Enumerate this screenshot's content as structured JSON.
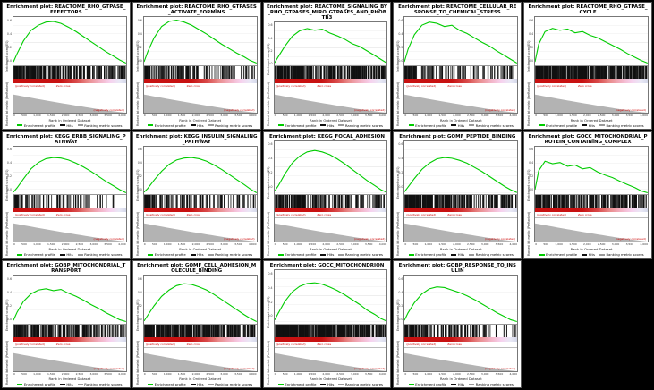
{
  "figure": {
    "background": "#000000"
  },
  "grid": {
    "cols": 5,
    "rows": 3,
    "empty_last_cell": true
  },
  "panel_common": {
    "title_prefix": "Enrichment plot:",
    "annotations": {
      "positive": "(positively correlated)",
      "zero_cross": "Zero cross",
      "negative": "(negatively correlated)"
    }
  },
  "axes": {
    "xlabel": "Rank in Ordered Dataset",
    "ylabel_top": "Enrichment score (ES)",
    "ylabel_bottom": "Ranked list metric (PreRanked)",
    "x_ticks": [
      "0",
      "500",
      "1,000",
      "1,500",
      "2,000",
      "2,500",
      "3,000",
      "3,500",
      "4,000"
    ],
    "es_ticks": [
      "0.6",
      "0.4",
      "0.2",
      "0.0"
    ],
    "rank_points": [
      0,
      150,
      400,
      700,
      1000,
      1300,
      1600,
      1900,
      2200,
      2500,
      2800,
      3100,
      3400,
      3700,
      4000,
      4250,
      4500
    ],
    "x_range": [
      0,
      4500
    ],
    "grid": true,
    "legend_position": "bottom"
  },
  "legend": {
    "items": [
      {
        "label": "Enrichment profile",
        "color": "#00cc00"
      },
      {
        "label": "Hits",
        "color": "#111111"
      },
      {
        "label": "Ranking metric scores",
        "color": "#999999"
      }
    ]
  },
  "chart_data": [
    {
      "type": "line",
      "title": "REACTOME_RHO_GTPASE_EFFECTORS",
      "es_axis_max": 0.7,
      "es_values": [
        0.02,
        0.15,
        0.35,
        0.52,
        0.6,
        0.65,
        0.66,
        0.63,
        0.57,
        0.5,
        0.42,
        0.34,
        0.26,
        0.18,
        0.11,
        0.05,
        0.0
      ],
      "hits": {
        "count": 250,
        "bias": 1.5
      },
      "metric_height": 78
    },
    {
      "type": "line",
      "title": "REACTOME_RHO_GTPASES_ACTIVATE_FORMINS",
      "es_axis_max": 0.7,
      "es_values": [
        0.02,
        0.18,
        0.4,
        0.58,
        0.66,
        0.68,
        0.65,
        0.6,
        0.53,
        0.46,
        0.38,
        0.3,
        0.23,
        0.16,
        0.1,
        0.04,
        0.0
      ],
      "hits": {
        "count": 140,
        "bias": 1.6
      },
      "metric_height": 78
    },
    {
      "type": "line",
      "title": "REACTOME_SIGNALING_BY_RHO_GTPASES_MIRO_GTPASES_AND_RHOBTB3",
      "es_axis_max": 0.7,
      "es_values": [
        0.01,
        0.12,
        0.3,
        0.48,
        0.58,
        0.62,
        0.59,
        0.61,
        0.54,
        0.49,
        0.43,
        0.35,
        0.3,
        0.22,
        0.14,
        0.07,
        0.0
      ],
      "hits": {
        "count": 300,
        "bias": 1.5
      },
      "metric_height": 78
    },
    {
      "type": "line",
      "title": "REACTOME_CELLULAR_RESPONSE_TO_CHEMICAL_STRESS",
      "es_axis_max": 0.7,
      "es_values": [
        0.02,
        0.22,
        0.45,
        0.6,
        0.65,
        0.63,
        0.58,
        0.6,
        0.52,
        0.47,
        0.4,
        0.33,
        0.27,
        0.19,
        0.12,
        0.06,
        0.0
      ],
      "hits": {
        "count": 120,
        "bias": 1.7
      },
      "metric_height": 78
    },
    {
      "type": "line",
      "title": "REACTOME_RHO_GTPASE_CYCLE",
      "es_axis_max": 0.7,
      "es_values": [
        0.02,
        0.3,
        0.5,
        0.55,
        0.52,
        0.54,
        0.48,
        0.5,
        0.44,
        0.4,
        0.34,
        0.28,
        0.22,
        0.15,
        0.09,
        0.04,
        0.0
      ],
      "hits": {
        "count": 400,
        "bias": 1.3
      },
      "metric_height": 78
    },
    {
      "type": "line",
      "title": "KEGG_ERBB_SIGNALING_PATHWAY",
      "es_axis_max": 0.7,
      "es_values": [
        0.01,
        0.08,
        0.22,
        0.38,
        0.48,
        0.54,
        0.56,
        0.55,
        0.52,
        0.47,
        0.41,
        0.34,
        0.26,
        0.18,
        0.11,
        0.05,
        0.0
      ],
      "hits": {
        "count": 85,
        "bias": 1.5
      },
      "metric_height": 78
    },
    {
      "type": "line",
      "title": "KEGG_INSULIN_SIGNALING_PATHWAY",
      "es_axis_max": 0.7,
      "es_values": [
        0.01,
        0.07,
        0.2,
        0.34,
        0.45,
        0.52,
        0.55,
        0.56,
        0.54,
        0.5,
        0.44,
        0.37,
        0.29,
        0.21,
        0.13,
        0.06,
        0.0
      ],
      "hits": {
        "count": 130,
        "bias": 1.5
      },
      "metric_height": 78
    },
    {
      "type": "line",
      "title": "KEGG_FOCAL_ADHESION",
      "es_axis_max": 0.7,
      "es_values": [
        0.02,
        0.1,
        0.26,
        0.42,
        0.52,
        0.58,
        0.6,
        0.58,
        0.54,
        0.48,
        0.41,
        0.33,
        0.25,
        0.17,
        0.1,
        0.04,
        0.0
      ],
      "hits": {
        "count": 190,
        "bias": 1.5
      },
      "metric_height": 78
    },
    {
      "type": "line",
      "title": "GOMF_PEPTIDE_BINDING",
      "es_axis_max": 0.7,
      "es_values": [
        0.01,
        0.08,
        0.2,
        0.33,
        0.42,
        0.48,
        0.5,
        0.49,
        0.46,
        0.42,
        0.36,
        0.3,
        0.23,
        0.16,
        0.09,
        0.04,
        0.0
      ],
      "hits": {
        "count": 300,
        "bias": 1.4
      },
      "metric_height": 78
    },
    {
      "type": "line",
      "title": "GOCC_MITOCHONDRIAL_PROTEIN_CONTAINING_COMPLEX",
      "es_axis_max": 0.7,
      "es_values": [
        0.05,
        0.35,
        0.5,
        0.46,
        0.48,
        0.42,
        0.44,
        0.38,
        0.4,
        0.33,
        0.28,
        0.24,
        0.18,
        0.13,
        0.08,
        0.03,
        0.0
      ],
      "hits": {
        "count": 230,
        "bias": 1.2
      },
      "metric_height": 78
    },
    {
      "type": "line",
      "title": "GOBP_MITOCHONDRIAL_TRANSPORT",
      "es_axis_max": 0.7,
      "es_values": [
        0.02,
        0.15,
        0.32,
        0.44,
        0.5,
        0.52,
        0.49,
        0.51,
        0.45,
        0.4,
        0.34,
        0.27,
        0.21,
        0.14,
        0.08,
        0.03,
        0.0
      ],
      "hits": {
        "count": 210,
        "bias": 1.4
      },
      "metric_height": 78
    },
    {
      "type": "line",
      "title": "GOMF_CELL_ADHESION_MOLECULE_BINDING",
      "es_axis_max": 0.7,
      "es_values": [
        0.01,
        0.1,
        0.25,
        0.4,
        0.5,
        0.57,
        0.6,
        0.59,
        0.55,
        0.5,
        0.43,
        0.35,
        0.27,
        0.19,
        0.11,
        0.05,
        0.0
      ],
      "hits": {
        "count": 330,
        "bias": 1.4
      },
      "metric_height": 78
    },
    {
      "type": "line",
      "title": "GOCC_MITOCHONDRION",
      "es_axis_max": 0.7,
      "es_values": [
        0.02,
        0.12,
        0.28,
        0.42,
        0.5,
        0.54,
        0.55,
        0.53,
        0.49,
        0.44,
        0.38,
        0.31,
        0.24,
        0.16,
        0.1,
        0.04,
        0.0
      ],
      "hits": {
        "count": 430,
        "bias": 1.2
      },
      "metric_height": 78
    },
    {
      "type": "line",
      "title": "GOBP_RESPONSE_TO_INSULIN",
      "es_axis_max": 0.7,
      "es_values": [
        0.02,
        0.14,
        0.3,
        0.44,
        0.52,
        0.55,
        0.54,
        0.5,
        0.46,
        0.41,
        0.35,
        0.28,
        0.21,
        0.14,
        0.08,
        0.03,
        0.0
      ],
      "hits": {
        "count": 150,
        "bias": 1.5
      },
      "metric_height": 78
    }
  ]
}
